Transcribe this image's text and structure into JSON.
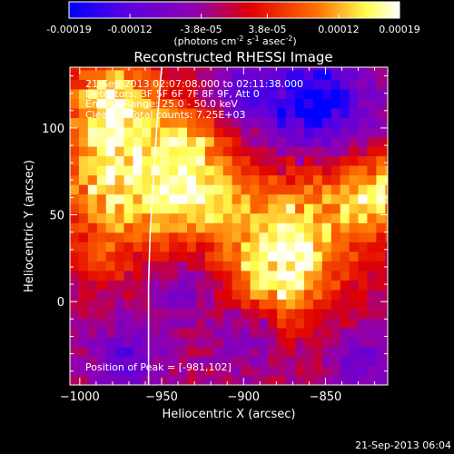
{
  "colorbar": {
    "ticks": [
      "-0.00019",
      "-0.00012",
      "-3.8e-05",
      "3.8e-05",
      "0.00012",
      "0.00019"
    ],
    "tick_values": [
      -0.00019,
      -0.00012,
      -3.8e-05,
      3.8e-05,
      0.00012,
      0.00019
    ],
    "range": [
      -0.00019,
      0.00019
    ],
    "units_main": "(photons cm",
    "units_exp1": "-2",
    "units_s": " s",
    "units_exp2": "-1",
    "units_asec": " asec",
    "units_exp3": "-2",
    "units_close": ")",
    "colors": [
      "#0000ff",
      "#7b00d8",
      "#a000a0",
      "#e00000",
      "#ff8000",
      "#ffff60",
      "#ffffff"
    ]
  },
  "annotations": {
    "line1": "21-Sep-2013 02:07:08.000 to 02:11:38.000",
    "line2": "Detectors: 3F 5F 6F 7F 8F 9F, Att 0",
    "line3": "Energy Range: 25.0 - 50.0 keV",
    "line4": "Clean     Total counts: 7.25E+03",
    "peak": "Position of Peak = [-981,102]"
  },
  "footer": {
    "timestamp": "21-Sep-2013 06:04"
  },
  "chart_data": {
    "type": "heatmap",
    "title": "Reconstructed RHESSI Image",
    "xlabel": "Heliocentric X (arcsec)",
    "ylabel": "Heliocentric Y (arcsec)",
    "xlim": [
      -1006,
      -812
    ],
    "ylim": [
      -48,
      135
    ],
    "xticks": [
      -1000,
      -950,
      -900,
      -850
    ],
    "xtick_labels": [
      "−1000",
      "−950",
      "−900",
      "−850"
    ],
    "yticks": [
      0,
      50,
      100
    ],
    "ytick_labels": [
      "0",
      "50",
      "100"
    ],
    "grid": false,
    "limb_curve": [
      [
        -950,
        135
      ],
      [
        -953,
        100
      ],
      [
        -955,
        70
      ],
      [
        -957,
        40
      ],
      [
        -958,
        10
      ],
      [
        -958,
        -48
      ]
    ],
    "peak_position": [
      -981,
      102
    ],
    "hot_spots": [
      {
        "x": -982,
        "y": 110,
        "r": 20,
        "v": 0.00019
      },
      {
        "x": -985,
        "y": 65,
        "r": 22,
        "v": 0.00015
      },
      {
        "x": -935,
        "y": 85,
        "r": 18,
        "v": 0.00014
      },
      {
        "x": -945,
        "y": 50,
        "r": 18,
        "v": 0.00012
      },
      {
        "x": -870,
        "y": 40,
        "r": 28,
        "v": 0.00016
      },
      {
        "x": -885,
        "y": 10,
        "r": 20,
        "v": 0.00012
      },
      {
        "x": -820,
        "y": 60,
        "r": 16,
        "v": 0.00016
      },
      {
        "x": -915,
        "y": 55,
        "r": 14,
        "v": 8e-05
      },
      {
        "x": -990,
        "y": 25,
        "r": 14,
        "v": 6e-05
      }
    ],
    "cold_spots": [
      {
        "x": -860,
        "y": 110,
        "r": 22,
        "v": -0.00018
      },
      {
        "x": -905,
        "y": 115,
        "r": 14,
        "v": -8e-05
      },
      {
        "x": -900,
        "y": -20,
        "r": 14,
        "v": -8e-05
      },
      {
        "x": -975,
        "y": -35,
        "r": 14,
        "v": -9e-05
      },
      {
        "x": -830,
        "y": -40,
        "r": 14,
        "v": -8e-05
      },
      {
        "x": -940,
        "y": 5,
        "r": 12,
        "v": -6e-05
      }
    ]
  }
}
